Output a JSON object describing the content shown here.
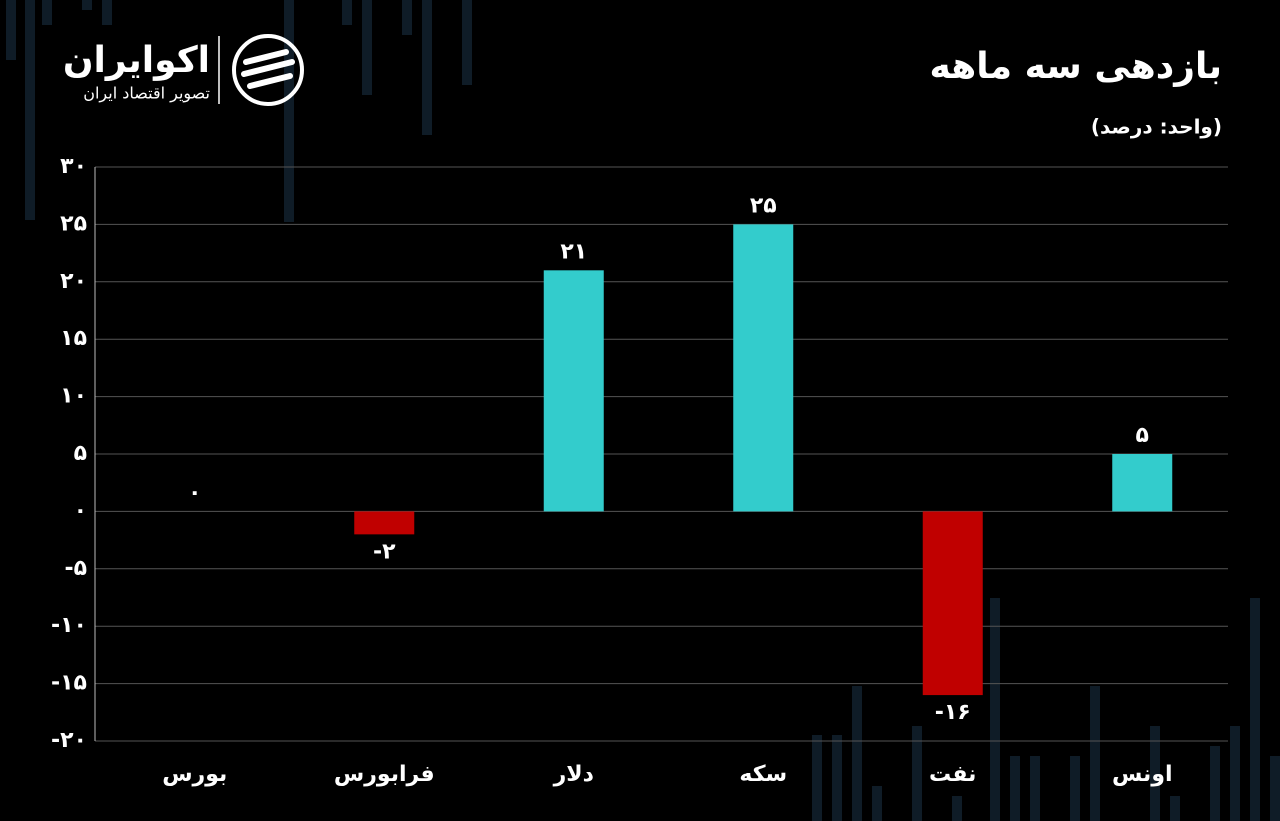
{
  "logo": {
    "name": "اکوایران",
    "tagline": "تصویر اقتصاد ایران"
  },
  "chart_data": {
    "type": "bar",
    "title": "بازدهی سه ماهه",
    "subtitle": "(واحد: درصد)",
    "categories": [
      "بورس",
      "فرابورس",
      "دلار",
      "سکه",
      "نفت",
      "اونس"
    ],
    "values": [
      0,
      -2,
      21,
      25,
      -16,
      5
    ],
    "value_labels": [
      "۰",
      "-۲",
      "۲۱",
      "۲۵",
      "-۱۶",
      "۵"
    ],
    "colors": [
      "#33cccc",
      "#c00000",
      "#33cccc",
      "#33cccc",
      "#c00000",
      "#33cccc"
    ],
    "ylim": [
      -20,
      30
    ],
    "yticks": [
      {
        "value": 30,
        "label": "۳۰"
      },
      {
        "value": 25,
        "label": "۲۵"
      },
      {
        "value": 20,
        "label": "۲۰"
      },
      {
        "value": 15,
        "label": "۱۵"
      },
      {
        "value": 10,
        "label": "۱۰"
      },
      {
        "value": 5,
        "label": "۵"
      },
      {
        "value": 0,
        "label": "۰"
      },
      {
        "value": -5,
        "label": "-۵"
      },
      {
        "value": -10,
        "label": "-۱۰"
      },
      {
        "value": -15,
        "label": "-۱۵"
      },
      {
        "value": -20,
        "label": "-۲۰"
      }
    ],
    "grid": true
  }
}
